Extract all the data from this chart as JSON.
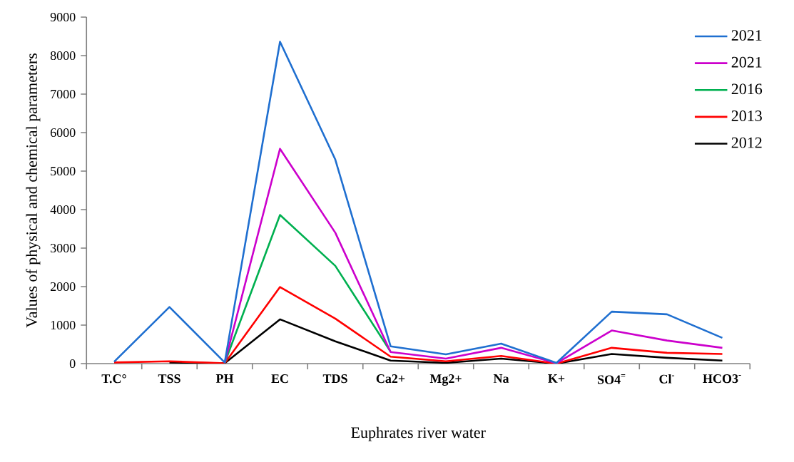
{
  "chart_data": {
    "type": "line",
    "xlabel": "Euphrates river water",
    "ylabel": "Values  of physical and chemical parameters",
    "categories": [
      "T.C°",
      "TSS",
      "PH",
      "EC",
      "TDS",
      "Ca2+",
      "Mg2+",
      "Na",
      "K+",
      "SO4$^{=}$",
      "Cl$^{-}$",
      "HCO3$^{-}$"
    ],
    "series": [
      {
        "name": "2021",
        "color": "#1f6fd0",
        "values": [
          50,
          1470,
          30,
          8360,
          5300,
          450,
          240,
          520,
          20,
          1350,
          1280,
          670
        ]
      },
      {
        "name": "2021",
        "color": "#cc00cc",
        "values": [
          null,
          null,
          20,
          5580,
          3400,
          300,
          130,
          410,
          10,
          860,
          600,
          410
        ]
      },
      {
        "name": "2016",
        "color": "#00b050",
        "values": [
          null,
          null,
          20,
          3860,
          2540,
          310,
          null,
          null,
          null,
          null,
          null,
          null
        ]
      },
      {
        "name": "2013",
        "color": "#ff0000",
        "values": [
          30,
          60,
          10,
          1990,
          1170,
          180,
          60,
          200,
          0,
          410,
          280,
          250
        ]
      },
      {
        "name": "2012",
        "color": "#000000",
        "values": [
          null,
          30,
          10,
          1150,
          580,
          80,
          20,
          130,
          0,
          250,
          150,
          80
        ]
      }
    ],
    "ylim": [
      0,
      9000
    ],
    "yticks": [
      0,
      1000,
      2000,
      3000,
      4000,
      5000,
      6000,
      7000,
      8000,
      9000
    ],
    "legend": "top right",
    "grid": false,
    "marker": "none",
    "line_style": "solid"
  }
}
